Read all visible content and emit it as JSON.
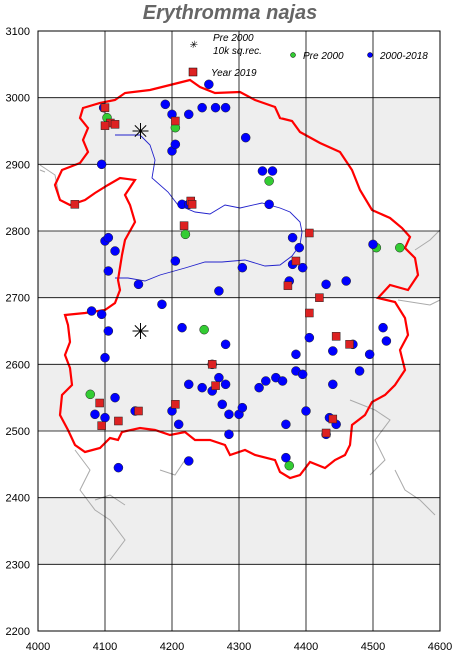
{
  "title": "Erythromma najas",
  "legend": {
    "pre2000_10k": "Pre 2000 10k sq.rec.",
    "pre2000_10k_line1": "Pre 2000",
    "pre2000_10k_line2": "10k sq.rec.",
    "year2019": "Year 2019",
    "pre2000": "Pre 2000",
    "y2000_2018": "2000-2018"
  },
  "colors": {
    "border": "#ff0000",
    "river": "#0000cc",
    "pre2000": "#33cc33",
    "y2000_2018": "#0000ff",
    "year2019": "#dd2222",
    "band": "#eeeeee"
  },
  "axes": {
    "x_ticks": [
      "4000",
      "4100",
      "4200",
      "4300",
      "4400",
      "4500",
      "4600"
    ],
    "y_ticks": [
      "3100",
      "3000",
      "2900",
      "2800",
      "2700",
      "2600",
      "2500",
      "2400",
      "2300",
      "2200"
    ],
    "x_range": [
      4000,
      4600
    ],
    "y_range": [
      2200,
      3100
    ]
  },
  "chart_data": {
    "type": "scatter",
    "title": "Erythromma najas",
    "xlim": [
      4000,
      4600
    ],
    "ylim": [
      2200,
      3100
    ],
    "series": [
      {
        "name": "2000-2018",
        "points": [
          [
            4098,
            2985
          ],
          [
            4190,
            2990
          ],
          [
            4200,
            2975
          ],
          [
            4245,
            2985
          ],
          [
            4265,
            2985
          ],
          [
            4280,
            2985
          ],
          [
            4255,
            3020
          ],
          [
            4095,
            2900
          ],
          [
            4200,
            2920
          ],
          [
            4205,
            2930
          ],
          [
            4225,
            2975
          ],
          [
            4310,
            2940
          ],
          [
            4335,
            2890
          ],
          [
            4350,
            2890
          ],
          [
            4215,
            2840
          ],
          [
            4225,
            2840
          ],
          [
            4345,
            2840
          ],
          [
            4100,
            2785
          ],
          [
            4105,
            2790
          ],
          [
            4115,
            2770
          ],
          [
            4205,
            2755
          ],
          [
            4305,
            2745
          ],
          [
            4380,
            2790
          ],
          [
            4390,
            2775
          ],
          [
            4380,
            2750
          ],
          [
            4395,
            2745
          ],
          [
            4375,
            2725
          ],
          [
            4500,
            2780
          ],
          [
            4105,
            2740
          ],
          [
            4150,
            2720
          ],
          [
            4185,
            2690
          ],
          [
            4270,
            2710
          ],
          [
            4430,
            2720
          ],
          [
            4460,
            2725
          ],
          [
            4080,
            2680
          ],
          [
            4095,
            2675
          ],
          [
            4105,
            2650
          ],
          [
            4100,
            2610
          ],
          [
            4215,
            2655
          ],
          [
            4280,
            2630
          ],
          [
            4260,
            2600
          ],
          [
            4385,
            2615
          ],
          [
            4405,
            2640
          ],
          [
            4440,
            2620
          ],
          [
            4470,
            2630
          ],
          [
            4495,
            2615
          ],
          [
            4515,
            2655
          ],
          [
            4520,
            2635
          ],
          [
            4085,
            2525
          ],
          [
            4100,
            2520
          ],
          [
            4115,
            2550
          ],
          [
            4145,
            2530
          ],
          [
            4120,
            2445
          ],
          [
            4200,
            2530
          ],
          [
            4210,
            2510
          ],
          [
            4225,
            2570
          ],
          [
            4245,
            2565
          ],
          [
            4270,
            2580
          ],
          [
            4260,
            2560
          ],
          [
            4280,
            2570
          ],
          [
            4275,
            2540
          ],
          [
            4285,
            2525
          ],
          [
            4300,
            2525
          ],
          [
            4305,
            2535
          ],
          [
            4330,
            2565
          ],
          [
            4340,
            2575
          ],
          [
            4355,
            2580
          ],
          [
            4365,
            2575
          ],
          [
            4385,
            2590
          ],
          [
            4395,
            2585
          ],
          [
            4370,
            2510
          ],
          [
            4400,
            2530
          ],
          [
            4435,
            2520
          ],
          [
            4445,
            2510
          ],
          [
            4430,
            2495
          ],
          [
            4440,
            2570
          ],
          [
            4480,
            2590
          ],
          [
            4370,
            2460
          ],
          [
            4225,
            2455
          ],
          [
            4285,
            2495
          ]
        ]
      },
      {
        "name": "Pre 2000",
        "points": [
          [
            4103,
            2970
          ],
          [
            4205,
            2955
          ],
          [
            4345,
            2875
          ],
          [
            4220,
            2795
          ],
          [
            4248,
            2652
          ],
          [
            4078,
            2555
          ],
          [
            4375,
            2448
          ],
          [
            4540,
            2775
          ],
          [
            4505,
            2775
          ]
        ]
      },
      {
        "name": "Year 2019",
        "points": [
          [
            4100,
            2985
          ],
          [
            4108,
            2962
          ],
          [
            4100,
            2958
          ],
          [
            4115,
            2960
          ],
          [
            4205,
            2965
          ],
          [
            4055,
            2840
          ],
          [
            4228,
            2845
          ],
          [
            4230,
            2840
          ],
          [
            4218,
            2808
          ],
          [
            4405,
            2797
          ],
          [
            4385,
            2755
          ],
          [
            4373,
            2718
          ],
          [
            4420,
            2700
          ],
          [
            4405,
            2677
          ],
          [
            4445,
            2642
          ],
          [
            4465,
            2630
          ],
          [
            4260,
            2600
          ],
          [
            4265,
            2568
          ],
          [
            4092,
            2542
          ],
          [
            4095,
            2508
          ],
          [
            4120,
            2515
          ],
          [
            4150,
            2530
          ],
          [
            4205,
            2540
          ],
          [
            4440,
            2518
          ],
          [
            4430,
            2497
          ]
        ]
      },
      {
        "name": "Pre 2000 10k sq.rec.",
        "points": [
          [
            4153,
            2950
          ],
          [
            4153,
            2650
          ]
        ]
      }
    ]
  }
}
